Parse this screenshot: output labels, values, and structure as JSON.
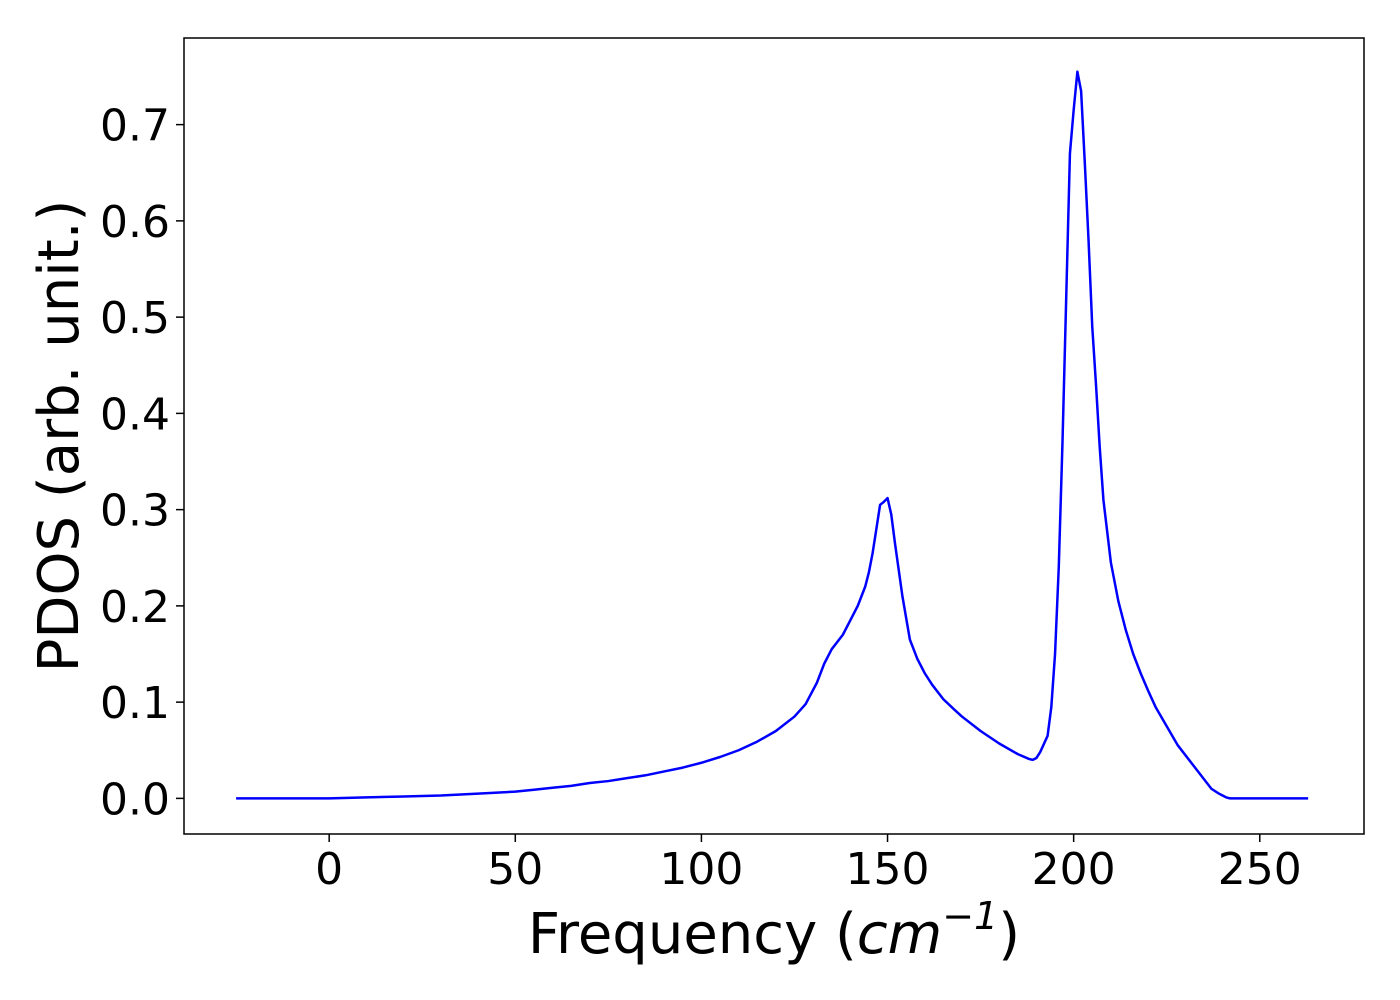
{
  "chart_data": {
    "type": "line",
    "title": "",
    "xlabel": "Frequency (",
    "xlabel_math_base": "cm",
    "xlabel_math_exp": "−1",
    "xlabel_close": ")",
    "ylabel": "PDOS (arb. unit.)",
    "xlim": [
      -39,
      278
    ],
    "ylim": [
      -0.037,
      0.79
    ],
    "xticks": [
      0,
      50,
      100,
      150,
      200,
      250
    ],
    "xtick_labels": [
      "0",
      "50",
      "100",
      "150",
      "200",
      "250"
    ],
    "yticks": [
      0.0,
      0.1,
      0.2,
      0.3,
      0.4,
      0.5,
      0.6,
      0.7
    ],
    "ytick_labels": [
      "0.0",
      "0.1",
      "0.2",
      "0.3",
      "0.4",
      "0.5",
      "0.6",
      "0.7"
    ],
    "grid": false,
    "legend": "none",
    "series": [
      {
        "color": "#0000ff",
        "x": [
          -25,
          0,
          10,
          20,
          30,
          40,
          50,
          55,
          60,
          65,
          70,
          75,
          80,
          85,
          90,
          95,
          100,
          105,
          110,
          115,
          120,
          125,
          128,
          131,
          133,
          135,
          138,
          140,
          142,
          144,
          145,
          146,
          147,
          148,
          149,
          150,
          151,
          152,
          154,
          156,
          158,
          160,
          162,
          165,
          168,
          170,
          175,
          180,
          185,
          188,
          189,
          190,
          191,
          193,
          194,
          195,
          196,
          197,
          198,
          199,
          200,
          201,
          202,
          203,
          204,
          205,
          206,
          207,
          208,
          210,
          212,
          214,
          216,
          218,
          220,
          222,
          225,
          228,
          230,
          233,
          235,
          237,
          239,
          240,
          241,
          242,
          243,
          244,
          245,
          250,
          263
        ],
        "y": [
          0.0,
          0.0,
          0.001,
          0.002,
          0.003,
          0.005,
          0.007,
          0.009,
          0.011,
          0.013,
          0.016,
          0.018,
          0.021,
          0.024,
          0.028,
          0.032,
          0.037,
          0.043,
          0.05,
          0.059,
          0.07,
          0.085,
          0.098,
          0.12,
          0.14,
          0.155,
          0.17,
          0.185,
          0.2,
          0.22,
          0.235,
          0.255,
          0.28,
          0.305,
          0.308,
          0.312,
          0.295,
          0.265,
          0.21,
          0.165,
          0.145,
          0.13,
          0.118,
          0.103,
          0.092,
          0.085,
          0.07,
          0.057,
          0.046,
          0.041,
          0.04,
          0.042,
          0.048,
          0.065,
          0.095,
          0.15,
          0.24,
          0.37,
          0.52,
          0.67,
          0.715,
          0.755,
          0.735,
          0.66,
          0.58,
          0.49,
          0.43,
          0.365,
          0.31,
          0.245,
          0.205,
          0.175,
          0.15,
          0.13,
          0.112,
          0.095,
          0.075,
          0.055,
          0.045,
          0.03,
          0.02,
          0.01,
          0.005,
          0.003,
          0.001,
          0.0,
          0.0,
          0.0,
          0.0,
          0.0,
          0.0
        ]
      }
    ]
  }
}
